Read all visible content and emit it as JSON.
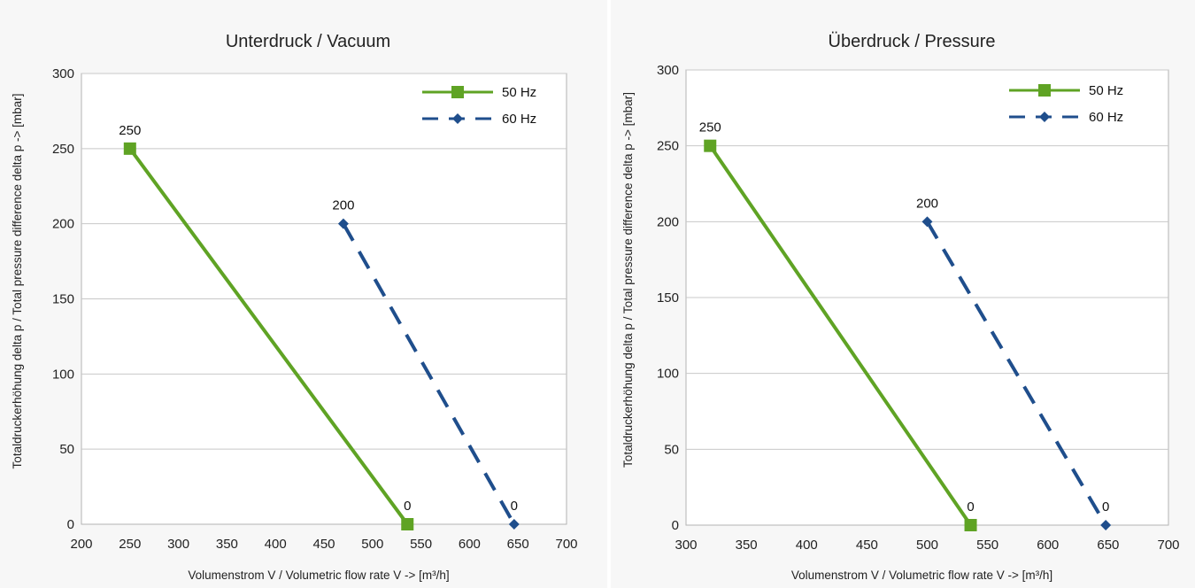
{
  "chart_data": [
    {
      "type": "line",
      "title": "Unterdruck / Vacuum",
      "xlabel": "Volumenstrom V / Volumetric flow rate V -> [m³/h]",
      "ylabel": "Totaldruckerhöhung delta p / Total pressure difference delta p -> [mbar]",
      "xlim": [
        200,
        700
      ],
      "ylim": [
        0,
        300
      ],
      "xticks": [
        200,
        250,
        300,
        350,
        400,
        450,
        500,
        550,
        600,
        650,
        700
      ],
      "yticks": [
        0,
        50,
        100,
        150,
        200,
        250,
        300
      ],
      "grid": true,
      "legend_position": "top-right",
      "series": [
        {
          "name": "50 Hz",
          "color": "#5fa324",
          "style": "solid",
          "marker": "square",
          "points": [
            {
              "x": 250,
              "y": 250,
              "label": "250"
            },
            {
              "x": 536,
              "y": 0,
              "label": "0"
            }
          ]
        },
        {
          "name": "60 Hz",
          "color": "#1f4e8c",
          "style": "dashed",
          "marker": "diamond",
          "points": [
            {
              "x": 470,
              "y": 200,
              "label": "200"
            },
            {
              "x": 646,
              "y": 0,
              "label": "0"
            }
          ]
        }
      ]
    },
    {
      "type": "line",
      "title": "Überdruck / Pressure",
      "xlabel": "Volumenstrom V / Volumetric flow rate V -> [m³/h]",
      "ylabel": "Totaldruckerhöhung delta p / Total pressure difference delta p -> [mbar]",
      "xlim": [
        300,
        700
      ],
      "ylim": [
        0,
        300
      ],
      "xticks": [
        300,
        350,
        400,
        450,
        500,
        550,
        600,
        650,
        700
      ],
      "yticks": [
        0,
        50,
        100,
        150,
        200,
        250,
        300
      ],
      "grid": true,
      "legend_position": "top-right",
      "series": [
        {
          "name": "50 Hz",
          "color": "#5fa324",
          "style": "solid",
          "marker": "square",
          "points": [
            {
              "x": 320,
              "y": 250,
              "label": "250"
            },
            {
              "x": 536,
              "y": 0,
              "label": "0"
            }
          ]
        },
        {
          "name": "60 Hz",
          "color": "#1f4e8c",
          "style": "dashed",
          "marker": "diamond",
          "points": [
            {
              "x": 500,
              "y": 200,
              "label": "200"
            },
            {
              "x": 648,
              "y": 0,
              "label": "0"
            }
          ]
        }
      ]
    }
  ]
}
